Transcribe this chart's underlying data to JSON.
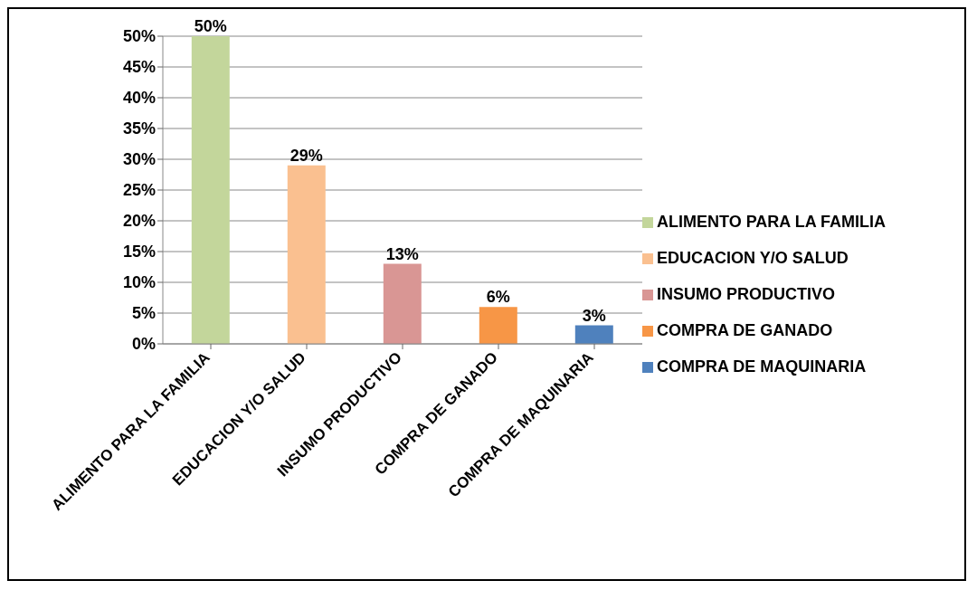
{
  "chart_data": {
    "type": "bar",
    "categories": [
      "ALIMENTO PARA LA FAMILIA",
      "EDUCACION Y/O SALUD",
      "INSUMO PRODUCTIVO",
      "COMPRA DE GANADO",
      "COMPRA DE MAQUINARIA"
    ],
    "series": [
      {
        "name": "ALIMENTO PARA LA FAMILIA",
        "color": "#c3d69b",
        "values": [
          50,
          null,
          null,
          null,
          null
        ],
        "value_labels": [
          "50%",
          null,
          null,
          null,
          null
        ]
      },
      {
        "name": "EDUCACION Y/O SALUD",
        "color": "#fac090",
        "values": [
          null,
          29,
          null,
          null,
          null
        ],
        "value_labels": [
          null,
          "29%",
          null,
          null,
          null
        ]
      },
      {
        "name": "INSUMO PRODUCTIVO",
        "color": "#d99694",
        "values": [
          null,
          null,
          13,
          null,
          null
        ],
        "value_labels": [
          null,
          null,
          "13%",
          null,
          null
        ]
      },
      {
        "name": "COMPRA DE GANADO",
        "color": "#f79646",
        "values": [
          null,
          null,
          null,
          6,
          null
        ],
        "value_labels": [
          null,
          null,
          null,
          "6%",
          null
        ]
      },
      {
        "name": "COMPRA DE MAQUINARIA",
        "color": "#4f81bd",
        "values": [
          null,
          null,
          null,
          null,
          3
        ],
        "value_labels": [
          null,
          null,
          null,
          null,
          "3%"
        ]
      }
    ],
    "stacked": true,
    "ylim": [
      0,
      50
    ],
    "yticks": [
      {
        "value": 0,
        "label": "0%"
      },
      {
        "value": 5,
        "label": "5%"
      },
      {
        "value": 10,
        "label": "10%"
      },
      {
        "value": 15,
        "label": "15%"
      },
      {
        "value": 20,
        "label": "20%"
      },
      {
        "value": 25,
        "label": "25%"
      },
      {
        "value": 30,
        "label": "30%"
      },
      {
        "value": 35,
        "label": "35%"
      },
      {
        "value": 40,
        "label": "40%"
      },
      {
        "value": 45,
        "label": "45%"
      },
      {
        "value": 50,
        "label": "50%"
      }
    ],
    "grid": "y",
    "legend": "right"
  }
}
